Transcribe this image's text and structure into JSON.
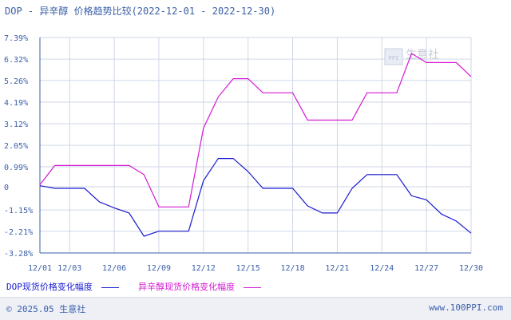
{
  "title": "DOP - 异辛醇 价格趋势比较(2022-12-01 - 2022-12-30)",
  "watermark": "生意社",
  "footer": {
    "copyright": "© 2025.05 生意社",
    "website": "www.100PPI.com"
  },
  "colors": {
    "axis": "#3a5fa8",
    "grid": "#cfd6e6",
    "series1": "#1a1ad0",
    "series2": "#d21ad2"
  },
  "chart_data": {
    "type": "line",
    "x_labels": [
      "12/01",
      "12/03",
      "12/06",
      "12/09",
      "12/12",
      "12/15",
      "12/18",
      "12/21",
      "12/24",
      "12/27",
      "12/30"
    ],
    "x_label_days": [
      1,
      3,
      6,
      9,
      12,
      15,
      18,
      21,
      24,
      27,
      30
    ],
    "xlim": [
      1,
      30
    ],
    "y_ticks": [
      "7.39%",
      "6.32%",
      "5.26%",
      "4.19%",
      "3.12%",
      "2.05%",
      "0.99%",
      "0",
      "-1.15%",
      "-2.21%",
      "-3.28%"
    ],
    "y_tick_values": [
      7.39,
      6.32,
      5.26,
      4.19,
      3.12,
      2.05,
      0.99,
      0,
      -1.15,
      -2.21,
      -3.28
    ],
    "ylim": [
      -3.28,
      7.39
    ],
    "grid": true,
    "legend_position": "bottom",
    "series": [
      {
        "name": "DOP现货价格变化幅度",
        "color": "#1a1ad0",
        "points": [
          [
            1,
            0.05
          ],
          [
            2,
            -0.08
          ],
          [
            3,
            -0.08
          ],
          [
            4,
            -0.08
          ],
          [
            5,
            -0.75
          ],
          [
            6,
            -1.05
          ],
          [
            7,
            -1.3
          ],
          [
            8,
            -2.45
          ],
          [
            9,
            -2.2
          ],
          [
            10,
            -2.2
          ],
          [
            11,
            -2.2
          ],
          [
            12,
            0.3
          ],
          [
            13,
            1.4
          ],
          [
            14,
            1.4
          ],
          [
            15,
            0.75
          ],
          [
            16,
            -0.08
          ],
          [
            17,
            -0.08
          ],
          [
            18,
            -0.08
          ],
          [
            19,
            -0.95
          ],
          [
            20,
            -1.3
          ],
          [
            21,
            -1.3
          ],
          [
            22,
            -0.08
          ],
          [
            23,
            0.6
          ],
          [
            24,
            0.6
          ],
          [
            25,
            0.6
          ],
          [
            26,
            -0.45
          ],
          [
            27,
            -0.65
          ],
          [
            28,
            -1.35
          ],
          [
            29,
            -1.7
          ],
          [
            30,
            -2.3
          ]
        ]
      },
      {
        "name": "异辛醇现货价格变化幅度",
        "color": "#d21ad2",
        "points": [
          [
            1,
            0.1
          ],
          [
            2,
            1.05
          ],
          [
            3,
            1.05
          ],
          [
            4,
            1.05
          ],
          [
            5,
            1.05
          ],
          [
            6,
            1.05
          ],
          [
            7,
            1.05
          ],
          [
            8,
            0.6
          ],
          [
            9,
            -1.0
          ],
          [
            10,
            -1.0
          ],
          [
            11,
            -1.0
          ],
          [
            12,
            2.9
          ],
          [
            13,
            4.45
          ],
          [
            14,
            5.35
          ],
          [
            15,
            5.35
          ],
          [
            16,
            4.65
          ],
          [
            17,
            4.65
          ],
          [
            18,
            4.65
          ],
          [
            19,
            3.3
          ],
          [
            20,
            3.3
          ],
          [
            21,
            3.3
          ],
          [
            22,
            3.3
          ],
          [
            23,
            4.65
          ],
          [
            24,
            4.65
          ],
          [
            25,
            4.65
          ],
          [
            26,
            6.6
          ],
          [
            27,
            6.15
          ],
          [
            28,
            6.15
          ],
          [
            29,
            6.15
          ],
          [
            30,
            5.45
          ]
        ]
      }
    ]
  }
}
